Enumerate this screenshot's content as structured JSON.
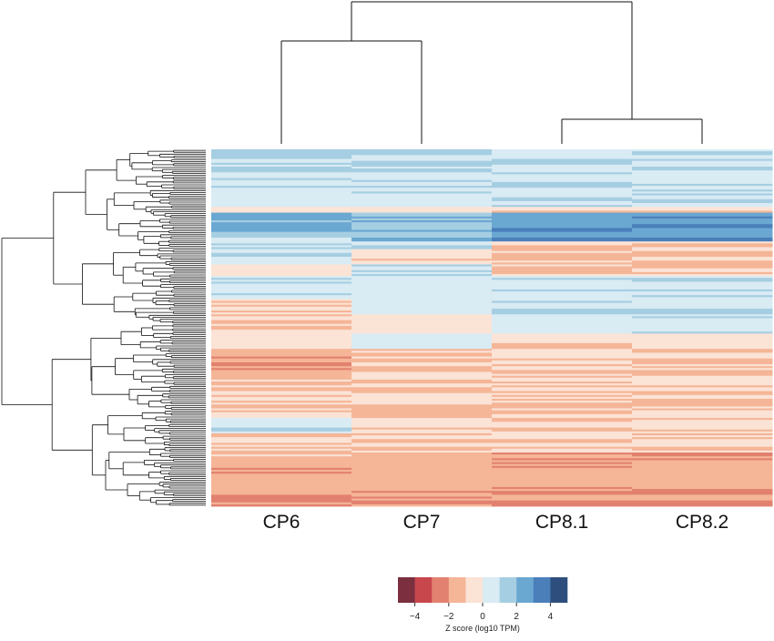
{
  "chart_data": {
    "type": "heatmap",
    "title": "",
    "columns": [
      "CP6",
      "CP7",
      "CP8.1",
      "CP8.2"
    ],
    "column_dendrogram": {
      "clusters": [
        [
          "CP6",
          "CP7"
        ],
        [
          "CP8.1",
          "CP8.2"
        ]
      ]
    },
    "row_dendrogram": true,
    "row_count_approx": 200,
    "colorbar": {
      "label": "Z score (log10 TPM)",
      "ticks": [
        -4,
        -2,
        0,
        2,
        4
      ],
      "range": [
        -5,
        5
      ],
      "colors": [
        "#7b2f3f",
        "#c8474c",
        "#e2816f",
        "#f5b597",
        "#fbe3d6",
        "#d9ebf3",
        "#a6cee2",
        "#6aa7d1",
        "#4a7fba",
        "#2e4f7e"
      ]
    },
    "row_blocks": [
      {
        "rows": 10,
        "values": [
          1.2,
          1.1,
          0.9,
          0.9
        ]
      },
      {
        "rows": 2,
        "values": [
          2.1,
          1.2,
          1.0,
          1.0
        ]
      },
      {
        "rows": 12,
        "values": [
          0.9,
          0.7,
          0.8,
          0.8
        ]
      },
      {
        "rows": 6,
        "values": [
          0.7,
          0.6,
          0.9,
          0.9
        ]
      },
      {
        "rows": 3,
        "values": [
          -0.6,
          -0.5,
          -0.7,
          -0.7
        ]
      },
      {
        "rows": 10,
        "values": [
          2.3,
          1.8,
          2.8,
          2.7
        ]
      },
      {
        "rows": 3,
        "values": [
          1.5,
          1.4,
          2.2,
          2.0
        ]
      },
      {
        "rows": 2,
        "values": [
          0.8,
          3.0,
          3.2,
          3.1
        ]
      },
      {
        "rows": 4,
        "values": [
          0.9,
          1.0,
          -0.9,
          -0.9
        ]
      },
      {
        "rows": 8,
        "values": [
          0.8,
          -0.7,
          -1.0,
          -1.0
        ]
      },
      {
        "rows": 6,
        "values": [
          -0.5,
          0.8,
          -0.9,
          -0.9
        ]
      },
      {
        "rows": 12,
        "values": [
          0.7,
          0.6,
          0.9,
          0.9
        ]
      },
      {
        "rows": 8,
        "values": [
          -0.9,
          0.6,
          1.0,
          1.0
        ]
      },
      {
        "rows": 10,
        "values": [
          -0.8,
          -0.6,
          0.8,
          0.8
        ]
      },
      {
        "rows": 8,
        "values": [
          -0.6,
          0.7,
          -0.6,
          -0.6
        ]
      },
      {
        "rows": 12,
        "values": [
          -1.8,
          -1.2,
          -0.8,
          -1.0
        ]
      },
      {
        "rows": 10,
        "values": [
          -1.3,
          -0.9,
          -0.8,
          -0.8
        ]
      },
      {
        "rows": 8,
        "values": [
          -0.9,
          -0.8,
          -1.2,
          -1.2
        ]
      },
      {
        "rows": 6,
        "values": [
          -0.8,
          -1.6,
          -0.8,
          -0.9
        ]
      },
      {
        "rows": 8,
        "values": [
          0.7,
          -0.8,
          -0.8,
          -0.8
        ]
      },
      {
        "rows": 10,
        "values": [
          -0.9,
          -0.8,
          -0.8,
          -0.8
        ]
      },
      {
        "rows": 8,
        "values": [
          -1.3,
          -1.5,
          -1.9,
          -1.8
        ]
      },
      {
        "rows": 12,
        "values": [
          -1.7,
          -1.4,
          -1.6,
          -1.6
        ]
      },
      {
        "rows": 8,
        "values": [
          -1.9,
          -1.8,
          -2.0,
          -1.9
        ]
      }
    ]
  }
}
